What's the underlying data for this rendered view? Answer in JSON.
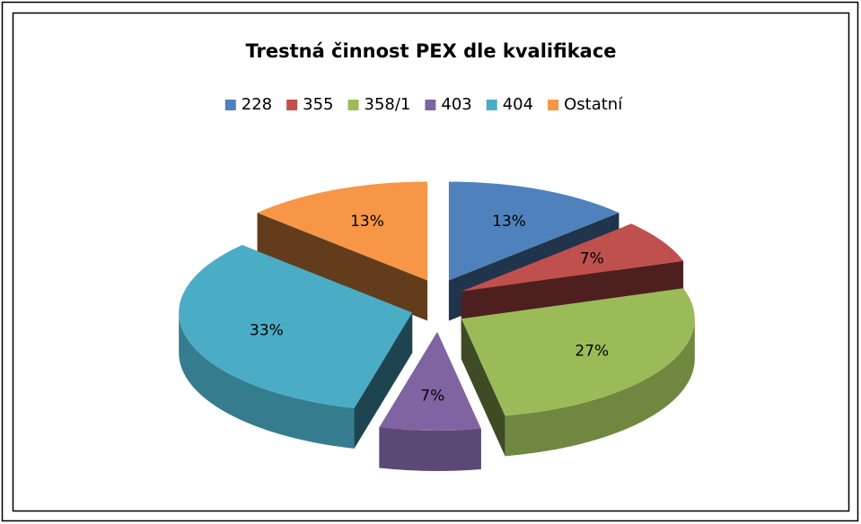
{
  "chart_data": {
    "type": "pie3d",
    "title": "Trestná činnost PEX dle kvalifikace",
    "categories": [
      "228",
      "355",
      "358/1",
      "403",
      "404",
      "Ostatní"
    ],
    "values": [
      13,
      7,
      27,
      7,
      33,
      13
    ],
    "value_labels": [
      "13%",
      "7%",
      "27%",
      "7%",
      "33%",
      "13%"
    ],
    "colors": [
      "#4f81bd",
      "#c0504d",
      "#9bbb59",
      "#8064a2",
      "#4bacc6",
      "#f79646"
    ],
    "legend": "top"
  }
}
